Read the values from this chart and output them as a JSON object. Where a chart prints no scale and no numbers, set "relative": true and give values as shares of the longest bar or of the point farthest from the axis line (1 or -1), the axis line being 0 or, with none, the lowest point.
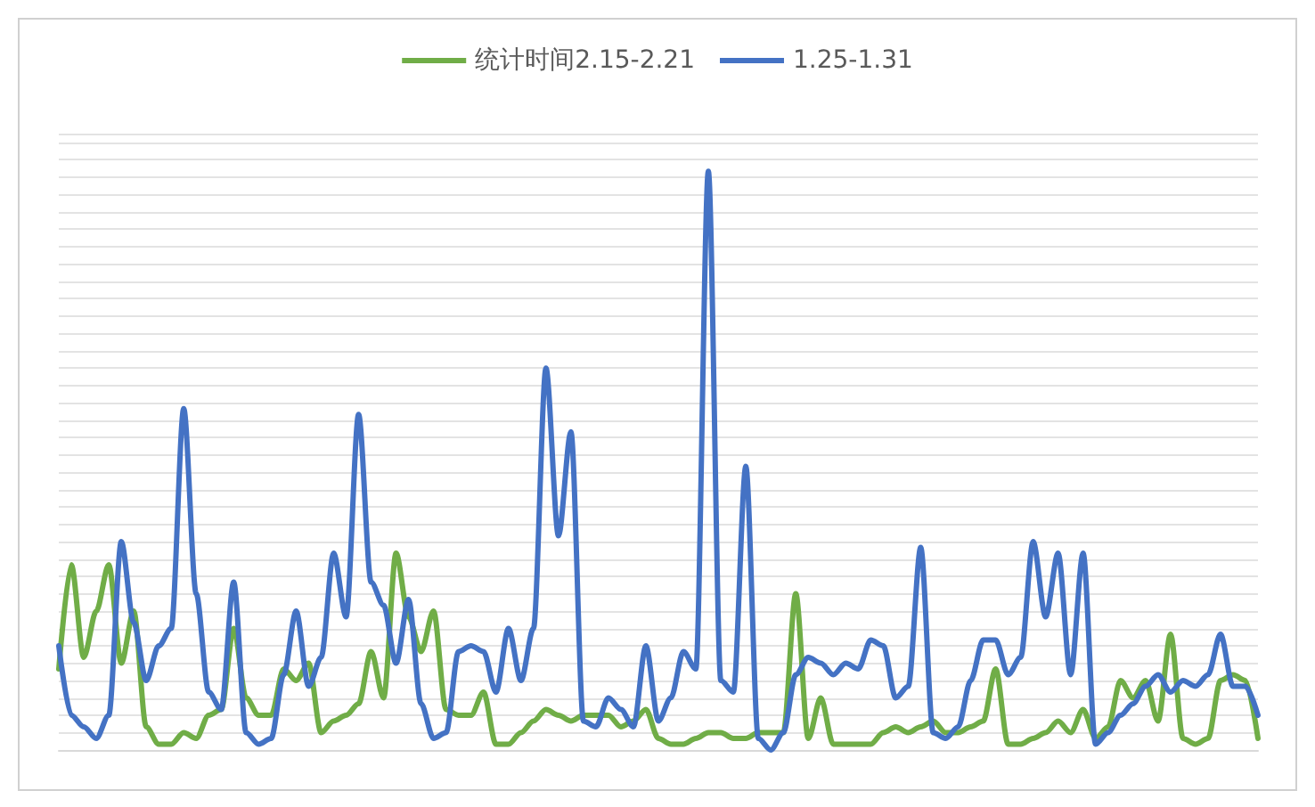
{
  "chart_data": {
    "type": "line",
    "relative": true,
    "grid": "y",
    "legend": "top",
    "marker": "none",
    "categories": [
      null,
      null,
      null,
      null,
      null,
      null,
      null,
      null,
      null,
      null,
      null,
      null,
      null,
      null,
      null,
      null,
      null,
      null,
      null,
      null,
      null,
      null,
      null,
      null,
      null,
      null,
      null,
      null,
      null,
      null,
      null,
      null,
      null,
      null,
      null,
      null,
      null,
      null,
      null,
      null,
      null,
      null,
      null,
      null,
      null,
      null,
      null,
      null,
      null,
      null,
      null,
      null,
      null,
      null,
      null,
      null,
      null,
      null,
      null,
      null,
      null,
      null,
      null,
      null,
      null,
      null,
      null,
      null,
      null,
      null,
      null,
      null,
      null,
      null,
      null,
      null,
      null,
      null,
      null,
      null,
      null,
      null,
      null,
      null,
      null,
      null,
      null,
      null,
      null,
      null,
      null,
      null,
      null,
      null,
      null,
      null,
      null
    ],
    "series": [
      {
        "name": "统计时间2.15-2.21",
        "color": "#70ad47",
        "values": [
          0.14,
          0.32,
          0.16,
          0.24,
          0.32,
          0.15,
          0.24,
          0.04,
          0.01,
          0.01,
          0.03,
          0.02,
          0.06,
          0.07,
          0.21,
          0.09,
          0.06,
          0.06,
          0.14,
          0.12,
          0.15,
          0.03,
          0.05,
          0.06,
          0.08,
          0.17,
          0.09,
          0.34,
          0.23,
          0.17,
          0.24,
          0.07,
          0.06,
          0.06,
          0.1,
          0.01,
          0.01,
          0.03,
          0.05,
          0.07,
          0.06,
          0.05,
          0.06,
          0.06,
          0.06,
          0.04,
          0.05,
          0.07,
          0.02,
          0.01,
          0.01,
          0.02,
          0.03,
          0.03,
          0.02,
          0.02,
          0.03,
          0.03,
          0.03,
          0.27,
          0.02,
          0.09,
          0.01,
          0.01,
          0.01,
          0.01,
          0.03,
          0.04,
          0.03,
          0.04,
          0.05,
          0.03,
          0.03,
          0.04,
          0.05,
          0.14,
          0.01,
          0.01,
          0.02,
          0.03,
          0.05,
          0.03,
          0.07,
          0.02,
          0.04,
          0.12,
          0.09,
          0.12,
          0.05,
          0.2,
          0.02,
          0.01,
          0.02,
          0.12,
          0.13,
          0.12,
          0.02
        ]
      },
      {
        "name": "1.25-1.31",
        "color": "#4472c4",
        "values": [
          0.18,
          0.06,
          0.04,
          0.02,
          0.06,
          0.36,
          0.22,
          0.12,
          0.18,
          0.21,
          0.59,
          0.27,
          0.1,
          0.07,
          0.29,
          0.03,
          0.01,
          0.02,
          0.13,
          0.24,
          0.11,
          0.16,
          0.34,
          0.23,
          0.58,
          0.29,
          0.25,
          0.15,
          0.26,
          0.08,
          0.02,
          0.03,
          0.17,
          0.18,
          0.17,
          0.1,
          0.21,
          0.12,
          0.21,
          0.66,
          0.37,
          0.55,
          0.05,
          0.04,
          0.09,
          0.07,
          0.04,
          0.18,
          0.05,
          0.09,
          0.17,
          0.14,
          1,
          0.12,
          0.1,
          0.49,
          0.02,
          0,
          0.03,
          0.13,
          0.16,
          0.15,
          0.13,
          0.15,
          0.14,
          0.19,
          0.18,
          0.09,
          0.11,
          0.35,
          0.03,
          0.02,
          0.04,
          0.12,
          0.19,
          0.19,
          0.13,
          0.16,
          0.36,
          0.23,
          0.34,
          0.13,
          0.34,
          0.01,
          0.03,
          0.06,
          0.08,
          0.11,
          0.13,
          0.1,
          0.12,
          0.11,
          0.13,
          0.2,
          0.11,
          0.11,
          0.06
        ]
      }
    ]
  }
}
